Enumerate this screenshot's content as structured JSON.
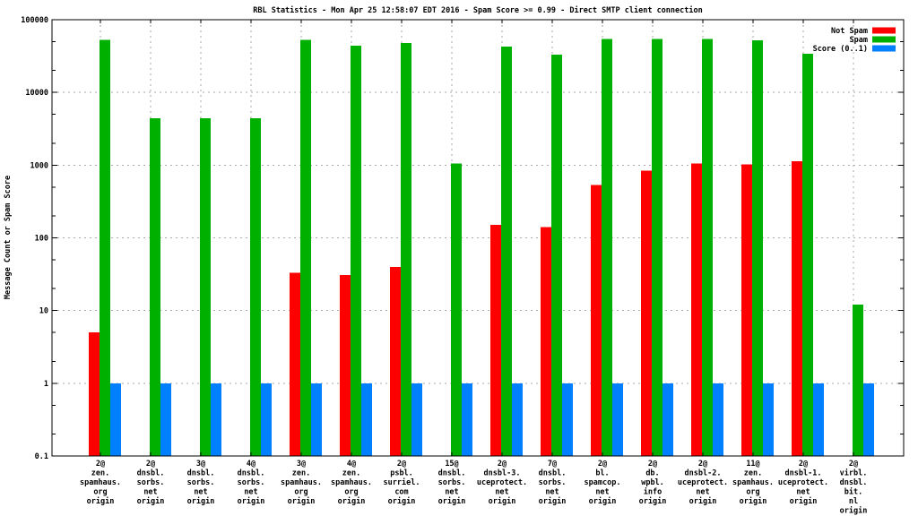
{
  "chart_data": {
    "type": "bar",
    "title": "RBL Statistics - Mon Apr 25 12:58:07 EDT 2016 - Spam Score >= 0.99 - Direct SMTP client connection",
    "ylabel": "Message Count or Spam Score",
    "y_scale": "log",
    "ylim": [
      0.1,
      100000
    ],
    "y_ticks": [
      "100000",
      "10000",
      "1000",
      "100",
      "10",
      "1",
      "0.1"
    ],
    "grid": true,
    "legend_position": "top-right-inside",
    "categories": [
      [
        "2@",
        "zen.",
        "spamhaus.",
        "org",
        "origin"
      ],
      [
        "2@",
        "dnsbl.",
        "sorbs.",
        "net",
        "origin"
      ],
      [
        "3@",
        "dnsbl.",
        "sorbs.",
        "net",
        "origin"
      ],
      [
        "4@",
        "dnsbl.",
        "sorbs.",
        "net",
        "origin"
      ],
      [
        "3@",
        "zen.",
        "spamhaus.",
        "org",
        "origin"
      ],
      [
        "4@",
        "zen.",
        "spamhaus.",
        "org",
        "origin"
      ],
      [
        "2@",
        "psbl.",
        "surriel.",
        "com",
        "origin"
      ],
      [
        "15@",
        "dnsbl.",
        "sorbs.",
        "net",
        "origin"
      ],
      [
        "2@",
        "dnsbl-3.",
        "uceprotect.",
        "net",
        "origin"
      ],
      [
        "7@",
        "dnsbl.",
        "sorbs.",
        "net",
        "origin"
      ],
      [
        "2@",
        "bl.",
        "spamcop.",
        "net",
        "origin"
      ],
      [
        "2@",
        "db.",
        "wpbl.",
        "info",
        "origin"
      ],
      [
        "2@",
        "dnsbl-2.",
        "uceprotect.",
        "net",
        "origin"
      ],
      [
        "11@",
        "zen.",
        "spamhaus.",
        "org",
        "origin"
      ],
      [
        "2@",
        "dnsbl-1.",
        "uceprotect.",
        "net",
        "origin"
      ],
      [
        "2@",
        "virbl.",
        "dnsbl.",
        "bit.",
        "nl",
        "origin"
      ]
    ],
    "series": [
      {
        "name": "Not Spam",
        "color": "#ff0000",
        "values": [
          5,
          null,
          null,
          null,
          33,
          31,
          40,
          null,
          150,
          140,
          530,
          840,
          1050,
          1020,
          1130,
          null
        ]
      },
      {
        "name": "Spam",
        "color": "#00b000",
        "values": [
          53000,
          4400,
          4400,
          4400,
          53000,
          44000,
          48000,
          1050,
          43000,
          33000,
          54000,
          54000,
          54000,
          52000,
          34000,
          12
        ]
      },
      {
        "name": "Score (0..1)",
        "color": "#0080ff",
        "values": [
          1,
          1,
          1,
          1,
          1,
          1,
          1,
          1,
          1,
          1,
          1,
          1,
          1,
          1,
          1,
          1
        ]
      }
    ]
  }
}
